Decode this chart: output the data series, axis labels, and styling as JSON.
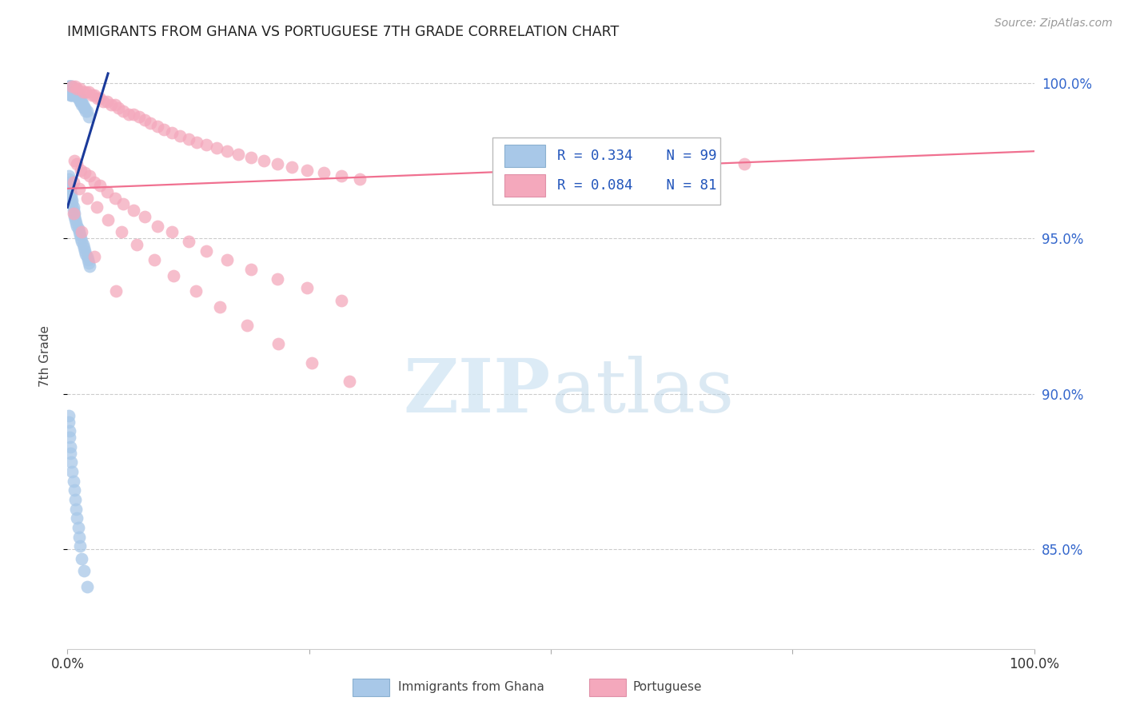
{
  "title": "IMMIGRANTS FROM GHANA VS PORTUGUESE 7TH GRADE CORRELATION CHART",
  "source": "Source: ZipAtlas.com",
  "ylabel": "7th Grade",
  "ghana_color": "#a8c8e8",
  "portuguese_color": "#f4a8bc",
  "ghana_line_color": "#1a3a9a",
  "portuguese_line_color": "#f07090",
  "legend_R_ghana": "R = 0.334",
  "legend_N_ghana": "N = 99",
  "legend_R_portuguese": "R = 0.084",
  "legend_N_portuguese": "N = 81",
  "watermark_zip": "ZIP",
  "watermark_atlas": "atlas",
  "background_color": "#ffffff",
  "grid_color": "#cccccc",
  "xlim": [
    0.0,
    1.0
  ],
  "ylim": [
    0.818,
    1.006
  ],
  "yticks": [
    0.85,
    0.9,
    0.95,
    1.0
  ],
  "ytick_labels": [
    "85.0%",
    "90.0%",
    "95.0%",
    "100.0%"
  ],
  "ghana_x": [
    0.001,
    0.001,
    0.001,
    0.001,
    0.001,
    0.002,
    0.002,
    0.002,
    0.002,
    0.002,
    0.003,
    0.003,
    0.003,
    0.003,
    0.004,
    0.004,
    0.004,
    0.004,
    0.005,
    0.005,
    0.005,
    0.005,
    0.006,
    0.006,
    0.006,
    0.007,
    0.007,
    0.007,
    0.008,
    0.008,
    0.008,
    0.009,
    0.009,
    0.01,
    0.01,
    0.011,
    0.011,
    0.012,
    0.012,
    0.013,
    0.013,
    0.014,
    0.015,
    0.015,
    0.016,
    0.017,
    0.018,
    0.019,
    0.02,
    0.022,
    0.001,
    0.001,
    0.002,
    0.002,
    0.003,
    0.003,
    0.004,
    0.004,
    0.005,
    0.005,
    0.006,
    0.006,
    0.007,
    0.007,
    0.008,
    0.009,
    0.01,
    0.011,
    0.012,
    0.013,
    0.014,
    0.015,
    0.016,
    0.017,
    0.018,
    0.019,
    0.02,
    0.021,
    0.022,
    0.023,
    0.001,
    0.001,
    0.002,
    0.002,
    0.003,
    0.003,
    0.004,
    0.005,
    0.006,
    0.007,
    0.008,
    0.009,
    0.01,
    0.011,
    0.012,
    0.013,
    0.015,
    0.017,
    0.02
  ],
  "ghana_y": [
    0.999,
    0.999,
    0.998,
    0.998,
    0.997,
    0.999,
    0.999,
    0.998,
    0.997,
    0.997,
    0.999,
    0.998,
    0.997,
    0.996,
    0.999,
    0.998,
    0.997,
    0.996,
    0.999,
    0.998,
    0.997,
    0.996,
    0.998,
    0.997,
    0.996,
    0.998,
    0.997,
    0.996,
    0.998,
    0.997,
    0.996,
    0.997,
    0.996,
    0.997,
    0.996,
    0.996,
    0.995,
    0.996,
    0.995,
    0.995,
    0.994,
    0.994,
    0.994,
    0.993,
    0.993,
    0.992,
    0.992,
    0.991,
    0.991,
    0.989,
    0.97,
    0.969,
    0.968,
    0.967,
    0.966,
    0.965,
    0.964,
    0.963,
    0.962,
    0.961,
    0.96,
    0.959,
    0.958,
    0.957,
    0.956,
    0.955,
    0.954,
    0.953,
    0.952,
    0.951,
    0.95,
    0.949,
    0.948,
    0.947,
    0.946,
    0.945,
    0.944,
    0.943,
    0.942,
    0.941,
    0.893,
    0.891,
    0.888,
    0.886,
    0.883,
    0.881,
    0.878,
    0.875,
    0.872,
    0.869,
    0.866,
    0.863,
    0.86,
    0.857,
    0.854,
    0.851,
    0.847,
    0.843,
    0.838
  ],
  "portuguese_x": [
    0.005,
    0.008,
    0.01,
    0.013,
    0.016,
    0.019,
    0.022,
    0.025,
    0.028,
    0.031,
    0.034,
    0.037,
    0.041,
    0.045,
    0.049,
    0.053,
    0.058,
    0.063,
    0.068,
    0.074,
    0.08,
    0.086,
    0.093,
    0.1,
    0.108,
    0.116,
    0.125,
    0.134,
    0.144,
    0.154,
    0.165,
    0.177,
    0.19,
    0.203,
    0.217,
    0.232,
    0.248,
    0.265,
    0.283,
    0.302,
    0.007,
    0.01,
    0.014,
    0.018,
    0.023,
    0.028,
    0.034,
    0.041,
    0.049,
    0.058,
    0.068,
    0.08,
    0.093,
    0.108,
    0.125,
    0.144,
    0.165,
    0.19,
    0.217,
    0.248,
    0.283,
    0.006,
    0.012,
    0.02,
    0.03,
    0.042,
    0.056,
    0.072,
    0.09,
    0.11,
    0.133,
    0.158,
    0.186,
    0.218,
    0.253,
    0.292,
    0.006,
    0.015,
    0.028,
    0.05,
    0.7
  ],
  "portuguese_y": [
    0.999,
    0.999,
    0.998,
    0.998,
    0.997,
    0.997,
    0.997,
    0.996,
    0.996,
    0.995,
    0.995,
    0.994,
    0.994,
    0.993,
    0.993,
    0.992,
    0.991,
    0.99,
    0.99,
    0.989,
    0.988,
    0.987,
    0.986,
    0.985,
    0.984,
    0.983,
    0.982,
    0.981,
    0.98,
    0.979,
    0.978,
    0.977,
    0.976,
    0.975,
    0.974,
    0.973,
    0.972,
    0.971,
    0.97,
    0.969,
    0.975,
    0.974,
    0.972,
    0.971,
    0.97,
    0.968,
    0.967,
    0.965,
    0.963,
    0.961,
    0.959,
    0.957,
    0.954,
    0.952,
    0.949,
    0.946,
    0.943,
    0.94,
    0.937,
    0.934,
    0.93,
    0.968,
    0.966,
    0.963,
    0.96,
    0.956,
    0.952,
    0.948,
    0.943,
    0.938,
    0.933,
    0.928,
    0.922,
    0.916,
    0.91,
    0.904,
    0.958,
    0.952,
    0.944,
    0.933,
    0.974
  ],
  "ghana_line_x": [
    0.0,
    0.042
  ],
  "ghana_line_y": [
    0.96,
    1.003
  ],
  "port_line_x": [
    0.0,
    1.0
  ],
  "port_line_y": [
    0.966,
    0.978
  ]
}
